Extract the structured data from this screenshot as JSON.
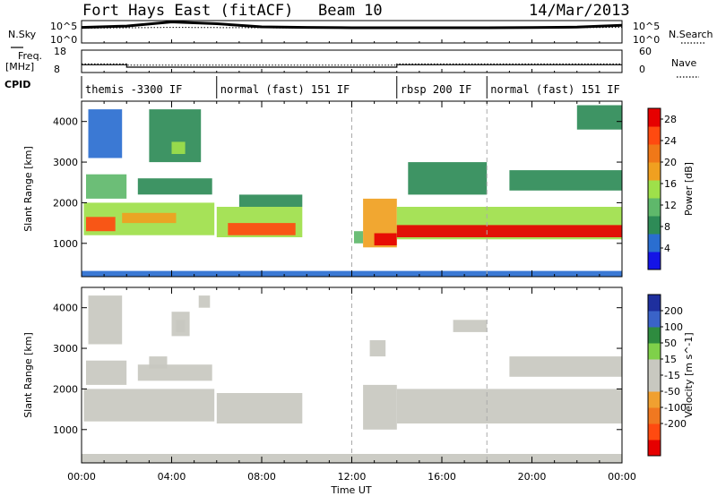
{
  "header": {
    "station": "Fort Hays East (fitACF)",
    "beam": "Beam 10",
    "date": "14/Mar/2013"
  },
  "labels": {
    "nsky": "N.Sky",
    "nsearch": "N.Search",
    "freq": "Freq.",
    "freq_unit": "[MHz]",
    "nave": "Nave",
    "cpid": "CPID",
    "noise_tick_top": "10^5",
    "noise_tick_bottom": "10^0"
  },
  "cpid_segments": [
    {
      "label": "themis -3300 IF",
      "start": 0,
      "end": 6
    },
    {
      "label": "normal (fast) 151 IF",
      "start": 6,
      "end": 14
    },
    {
      "label": "rbsp 200 IF",
      "start": 14,
      "end": 18
    },
    {
      "label": "normal (fast) 151 IF",
      "start": 18,
      "end": 24
    }
  ],
  "colors": {
    "power_scale": [
      "#1414e6",
      "#2a6ed0",
      "#2e8b57",
      "#5fb86b",
      "#9ee04a",
      "#f0a020",
      "#f07818",
      "#ff4a10",
      "#e60000"
    ],
    "velocity_scale": [
      "#1e2f9e",
      "#3a63c8",
      "#2e8b3f",
      "#7fd04a",
      "#c8c8c0",
      "#c8c8c0",
      "#f0a030",
      "#f07820",
      "#ff4a10",
      "#e60000"
    ]
  },
  "chart_data": [
    {
      "type": "line",
      "name": "noise",
      "title": "Noise",
      "series": [
        {
          "name": "N.Sky",
          "x": [
            0,
            2,
            4,
            6,
            8,
            10,
            12,
            14,
            16,
            18,
            20,
            22,
            24
          ],
          "y": [
            3000,
            6000,
            50000,
            20000,
            4000,
            3000,
            2500,
            2500,
            2500,
            2500,
            2800,
            3500,
            9000
          ]
        },
        {
          "name": "N.Search",
          "x": [
            0,
            4,
            8,
            12,
            16,
            20,
            24
          ],
          "y": [
            2000,
            3000,
            2500,
            2000,
            2000,
            2500,
            3000
          ]
        }
      ],
      "xlim": [
        0,
        24
      ],
      "ylim": [
        1,
        100000
      ],
      "log_y": true
    },
    {
      "type": "line",
      "name": "frequency_and_nave",
      "series": [
        {
          "name": "Freq.",
          "x": [
            0,
            2,
            2,
            14,
            14,
            24
          ],
          "y": [
            11.5,
            11.5,
            10.4,
            10.4,
            11.5,
            11.5
          ]
        },
        {
          "name": "Nave",
          "x": [
            0,
            2,
            2,
            14,
            14,
            24
          ],
          "y": [
            23,
            23,
            20,
            20,
            23,
            23
          ]
        }
      ],
      "xlim": [
        0,
        24
      ],
      "ylim_left": [
        8,
        18
      ],
      "ylim_right": [
        0,
        60
      ]
    },
    {
      "type": "heatmap",
      "name": "power",
      "ylabel": "Slant Range [km]",
      "colorbar_label": "Power [dB]",
      "colorbar_ticks": [
        4,
        8,
        12,
        16,
        20,
        24,
        28
      ],
      "clim": [
        0,
        30
      ],
      "xlim": [
        0,
        24
      ],
      "ylim": [
        180,
        4500
      ],
      "yticks": [
        1000,
        2000,
        3000,
        4000
      ],
      "grid": "vertical dashed at 12:00 and 18:00",
      "patches": [
        {
          "t0": 0.1,
          "t1": 5.9,
          "r0": 1200,
          "r1": 2000,
          "v": 14
        },
        {
          "t0": 0.2,
          "t1": 1.5,
          "r0": 1300,
          "r1": 1650,
          "v": 26
        },
        {
          "t0": 1.8,
          "t1": 4.2,
          "r0": 1500,
          "r1": 1750,
          "v": 18
        },
        {
          "t0": 0.2,
          "t1": 2.0,
          "r0": 2100,
          "r1": 2700,
          "v": 10
        },
        {
          "t0": 2.5,
          "t1": 5.8,
          "r0": 2200,
          "r1": 2600,
          "v": 8
        },
        {
          "t0": 0.3,
          "t1": 1.8,
          "r0": 3100,
          "r1": 4300,
          "v": 6
        },
        {
          "t0": 3.0,
          "t1": 5.3,
          "r0": 3000,
          "r1": 4300,
          "v": 7
        },
        {
          "t0": 4.0,
          "t1": 4.6,
          "r0": 3200,
          "r1": 3500,
          "v": 16
        },
        {
          "t0": 6.0,
          "t1": 9.8,
          "r0": 1150,
          "r1": 1900,
          "v": 14
        },
        {
          "t0": 6.5,
          "t1": 9.5,
          "r0": 1200,
          "r1": 1500,
          "v": 26
        },
        {
          "t0": 7.0,
          "t1": 9.8,
          "r0": 1900,
          "r1": 2200,
          "v": 8
        },
        {
          "t0": 12.1,
          "t1": 12.5,
          "r0": 1000,
          "r1": 1300,
          "v": 10
        },
        {
          "t0": 12.5,
          "t1": 14.0,
          "r0": 900,
          "r1": 2100,
          "v": 18
        },
        {
          "t0": 13.0,
          "t1": 14.0,
          "r0": 950,
          "r1": 1250,
          "v": 27
        },
        {
          "t0": 14.0,
          "t1": 24.0,
          "r0": 1100,
          "r1": 1900,
          "v": 14
        },
        {
          "t0": 14.0,
          "t1": 24.0,
          "r0": 1150,
          "r1": 1450,
          "v": 27
        },
        {
          "t0": 14.5,
          "t1": 18.0,
          "r0": 2200,
          "r1": 3000,
          "v": 7
        },
        {
          "t0": 19.0,
          "t1": 24.0,
          "r0": 2300,
          "r1": 2800,
          "v": 8
        },
        {
          "t0": 22.0,
          "t1": 24.0,
          "r0": 3800,
          "r1": 4400,
          "v": 8
        },
        {
          "t0": 0.0,
          "t1": 24.0,
          "r0": 180,
          "r1": 320,
          "v": 5
        }
      ]
    },
    {
      "type": "heatmap",
      "name": "velocity",
      "ylabel": "Slant Range [km]",
      "xlabel": "Time UT",
      "colorbar_label": "Velocity [m s^-1]",
      "colorbar_ticks": [
        200,
        100,
        50,
        15,
        -15,
        -50,
        -100,
        -200
      ],
      "clim": [
        -250,
        250
      ],
      "xlim": [
        0,
        24
      ],
      "ylim": [
        180,
        4500
      ],
      "yticks": [
        1000,
        2000,
        3000,
        4000
      ],
      "xticks": [
        "00:00",
        "04:00",
        "08:00",
        "12:00",
        "16:00",
        "20:00",
        "00:00"
      ],
      "grid": "vertical dashed at 12:00 and 18:00",
      "patches": [
        {
          "t0": 0.1,
          "t1": 5.9,
          "r0": 1200,
          "r1": 2000,
          "v": 0
        },
        {
          "t0": 0.2,
          "t1": 2.0,
          "r0": 2100,
          "r1": 2700,
          "v": 0
        },
        {
          "t0": 2.5,
          "t1": 5.8,
          "r0": 2200,
          "r1": 2600,
          "v": 0
        },
        {
          "t0": 3.0,
          "t1": 3.8,
          "r0": 2500,
          "r1": 2800,
          "v": 40
        },
        {
          "t0": 4.0,
          "t1": 4.8,
          "r0": 3300,
          "r1": 3900,
          "v": 40
        },
        {
          "t0": 4.2,
          "t1": 4.6,
          "r0": 3400,
          "r1": 3700,
          "v": -40
        },
        {
          "t0": 0.3,
          "t1": 1.8,
          "r0": 3100,
          "r1": 4300,
          "v": 0
        },
        {
          "t0": 5.2,
          "t1": 5.7,
          "r0": 4000,
          "r1": 4300,
          "v": 40
        },
        {
          "t0": 6.0,
          "t1": 9.8,
          "r0": 1150,
          "r1": 1900,
          "v": 40
        },
        {
          "t0": 12.5,
          "t1": 14.0,
          "r0": 1000,
          "r1": 2100,
          "v": 40
        },
        {
          "t0": 12.8,
          "t1": 13.5,
          "r0": 2800,
          "r1": 3200,
          "v": 40
        },
        {
          "t0": 14.0,
          "t1": 24.0,
          "r0": 1150,
          "r1": 2000,
          "v": 0
        },
        {
          "t0": 19.0,
          "t1": 24.0,
          "r0": 2300,
          "r1": 2800,
          "v": 0
        },
        {
          "t0": 16.5,
          "t1": 18.0,
          "r0": 3400,
          "r1": 3700,
          "v": 0
        },
        {
          "t0": 0.0,
          "t1": 24.0,
          "r0": 180,
          "r1": 400,
          "v": -45
        }
      ]
    }
  ]
}
